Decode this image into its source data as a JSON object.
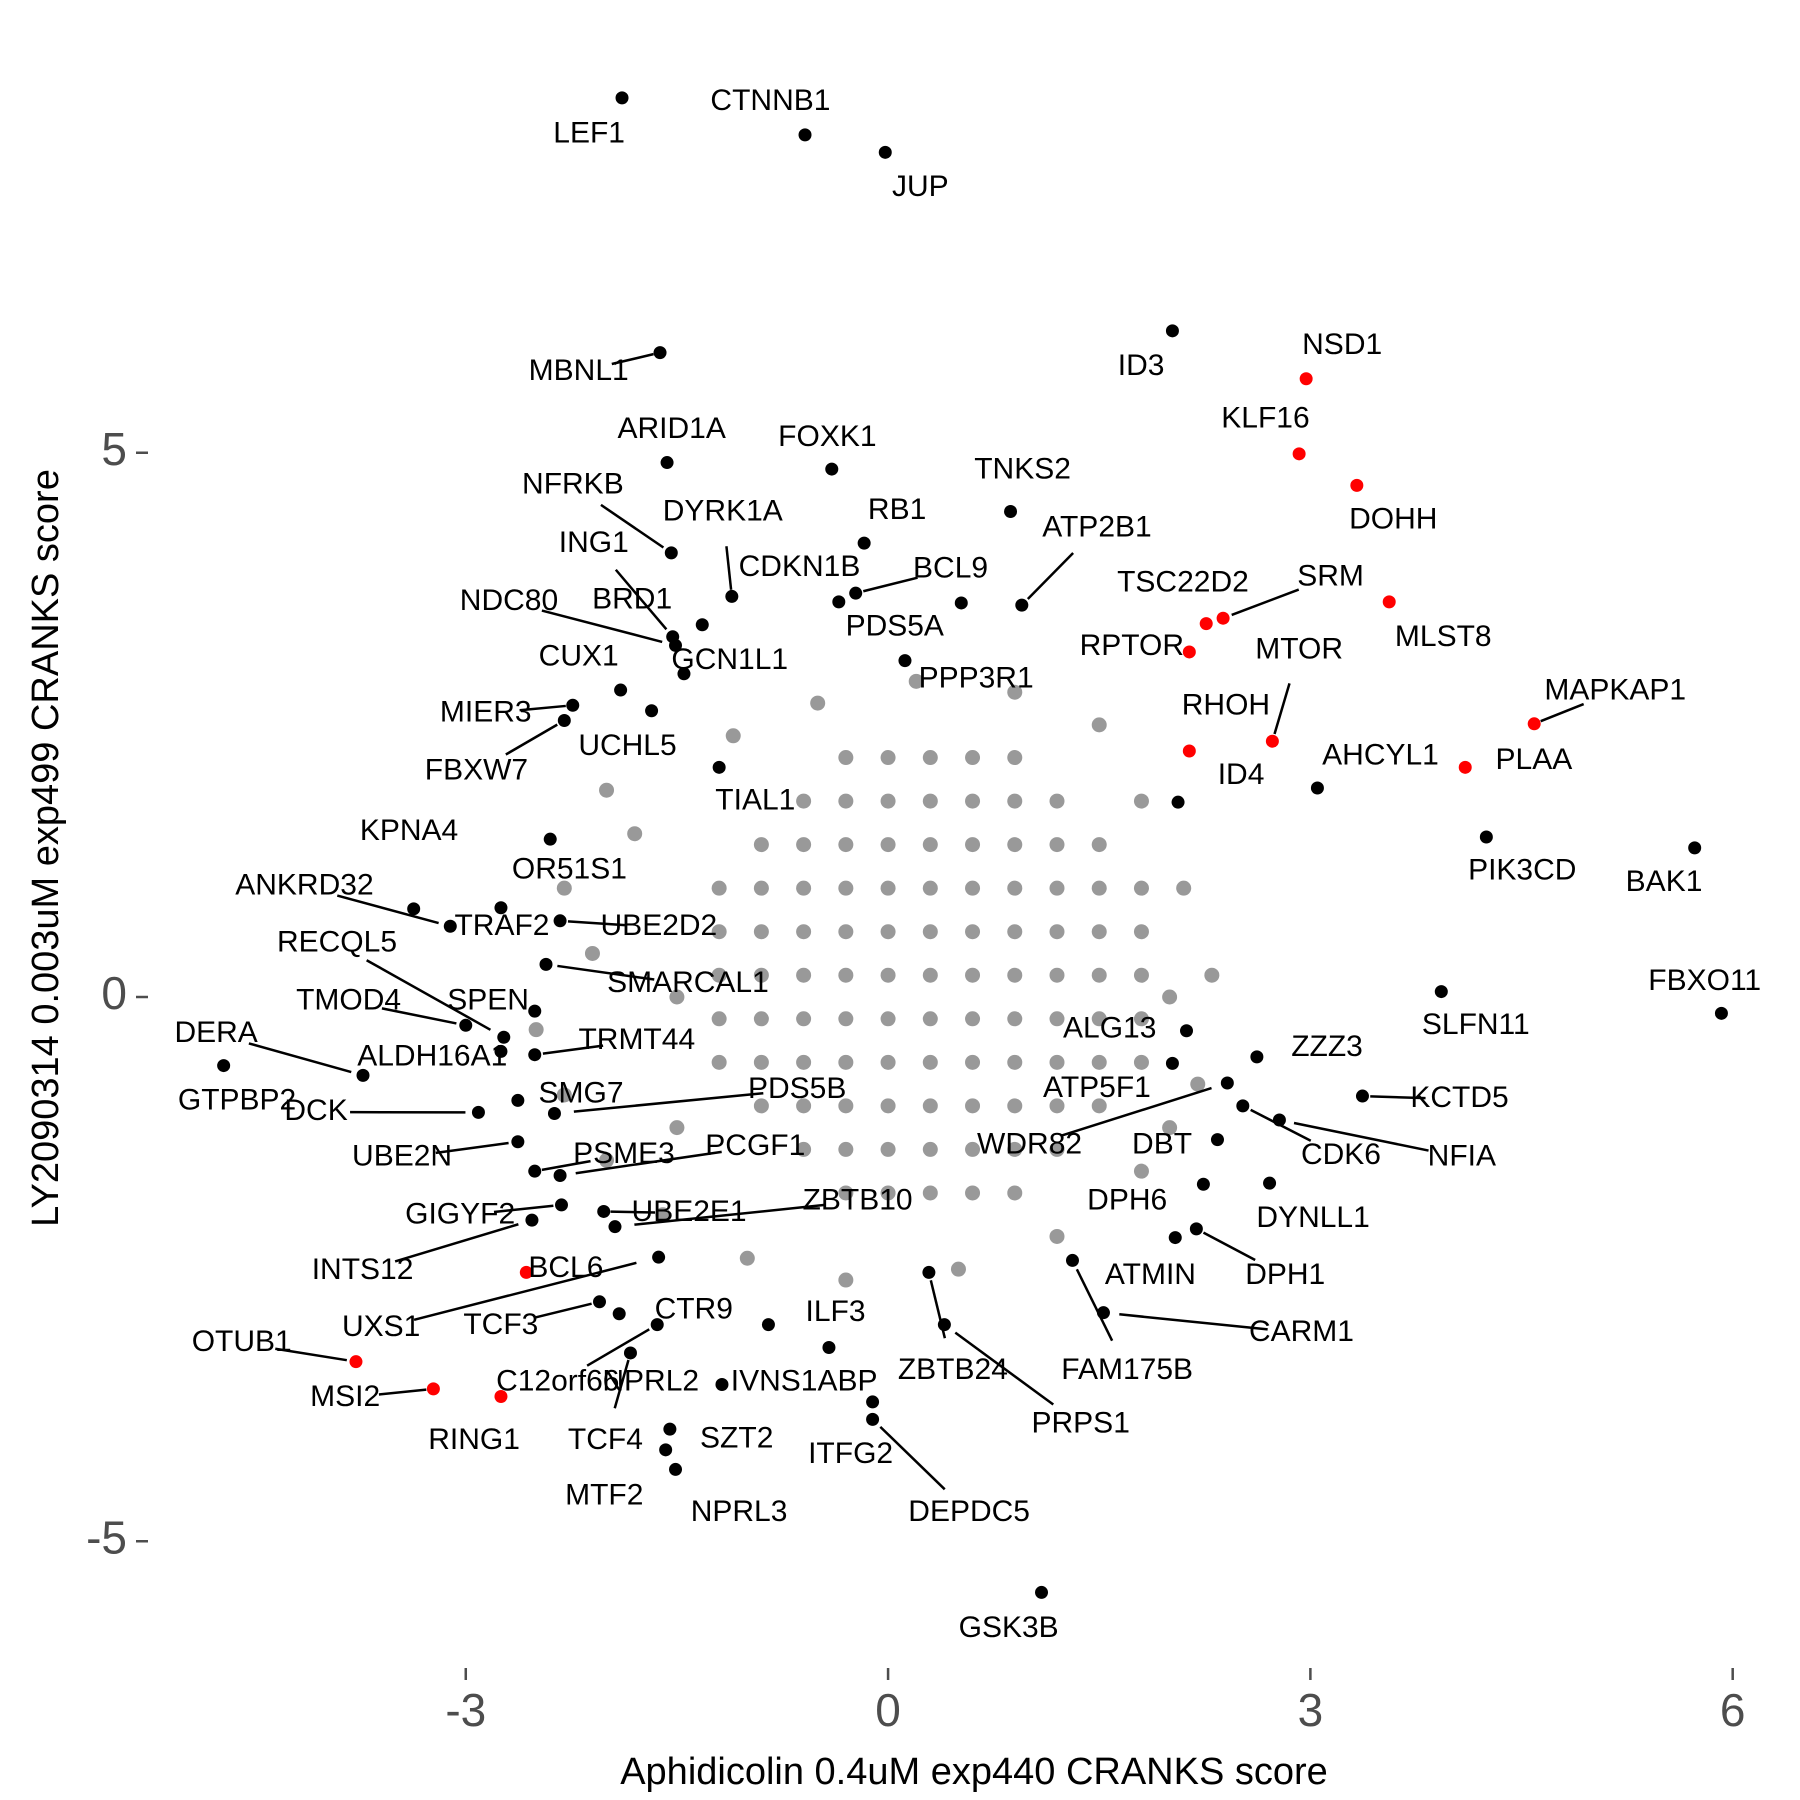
{
  "chart_data": {
    "type": "scatter",
    "xlabel": "Aphidicolin 0.4uM exp440 CRANKS score",
    "ylabel": "LY2090314 0.003uM exp499 CRANKS score",
    "xlim": [
      -5.3,
      6.4
    ],
    "ylim": [
      -6.1,
      8.7
    ],
    "xticks": [
      -3,
      0,
      3,
      6
    ],
    "yticks": [
      -5,
      0,
      5
    ],
    "grid": false,
    "series": [
      {
        "color": "#999999",
        "x": [
          -1.2,
          -1.2,
          -1.2,
          -1.2,
          -1.2,
          -0.9,
          -0.9,
          -0.9,
          -0.9,
          -0.9,
          -0.9,
          -0.9,
          -0.6,
          -0.6,
          -0.6,
          -0.6,
          -0.6,
          -0.6,
          -0.6,
          -0.6,
          -0.6,
          -0.3,
          -0.3,
          -0.3,
          -0.3,
          -0.3,
          -0.3,
          -0.3,
          -0.3,
          -0.3,
          -0.3,
          -0.3,
          0,
          0,
          0,
          0,
          0,
          0,
          0,
          0,
          0,
          0,
          0,
          0.3,
          0.3,
          0.3,
          0.3,
          0.3,
          0.3,
          0.3,
          0.3,
          0.3,
          0.3,
          0.3,
          0.6,
          0.6,
          0.6,
          0.6,
          0.6,
          0.6,
          0.6,
          0.6,
          0.6,
          0.6,
          0.6,
          0.9,
          0.9,
          0.9,
          0.9,
          0.9,
          0.9,
          0.9,
          0.9,
          0.9,
          0.9,
          0.9,
          1.2,
          1.2,
          1.2,
          1.2,
          1.2,
          1.2,
          1.2,
          1.2,
          1.2,
          1.5,
          1.5,
          1.5,
          1.5,
          1.5,
          1.5,
          1.5,
          1.8,
          1.8,
          1.8,
          1.8,
          1.8,
          -2.0,
          -1.8,
          -2.3,
          -2.1,
          -2.5,
          -2.3,
          -2.0,
          -1.6,
          -1.0,
          -0.3,
          0.5,
          1.2,
          1.8,
          2.2,
          2.3,
          2.1,
          1.8,
          1.5,
          0.9,
          0.2,
          -0.5,
          -1.1,
          -1.5,
          -1.5,
          2.0,
          2.0
        ],
        "y": [
          -0.6,
          -0.2,
          0.2,
          0.6,
          1.0,
          -1.0,
          -0.6,
          -0.2,
          0.2,
          0.6,
          1.0,
          1.4,
          -1.4,
          -1.0,
          -0.6,
          -0.2,
          0.2,
          0.6,
          1.0,
          1.4,
          1.8,
          -1.8,
          -1.4,
          -1.0,
          -0.6,
          -0.2,
          0.2,
          0.6,
          1.0,
          1.4,
          1.8,
          2.2,
          -1.8,
          -1.4,
          -1.0,
          -0.6,
          -0.2,
          0.2,
          0.6,
          1.0,
          1.4,
          1.8,
          2.2,
          -1.8,
          -1.4,
          -1.0,
          -0.6,
          -0.2,
          0.2,
          0.6,
          1.0,
          1.4,
          1.8,
          2.2,
          -1.8,
          -1.4,
          -1.0,
          -0.6,
          -0.2,
          0.2,
          0.6,
          1.0,
          1.4,
          1.8,
          2.2,
          -1.8,
          -1.4,
          -1.0,
          -0.6,
          -0.2,
          0.2,
          0.6,
          1.0,
          1.4,
          1.8,
          2.2,
          -1.4,
          -1.0,
          -0.6,
          -0.2,
          0.2,
          0.6,
          1.0,
          1.4,
          1.8,
          -1.0,
          -0.6,
          -0.2,
          0.2,
          0.6,
          1.0,
          1.4,
          -0.6,
          -0.2,
          0.2,
          0.6,
          1.0,
          1.9,
          1.5,
          1.0,
          0.4,
          -0.3,
          -0.9,
          -1.5,
          -2.0,
          -2.4,
          -2.6,
          -2.5,
          -2.2,
          -1.6,
          -0.8,
          0.2,
          1.0,
          1.8,
          2.5,
          2.8,
          2.9,
          2.7,
          2.4,
          -1.2,
          0.0,
          -1.2,
          0.0
        ]
      },
      {
        "color": "#000000",
        "labels": [
          "LEF1",
          "CTNNB1",
          "JUP",
          "MBNL1",
          "ID3",
          "ARID1A",
          "FOXK1",
          "NFRKB",
          "DYRK1A",
          "RB1",
          "TNKS2",
          "ATP2B1",
          "ING1",
          "CDKN1B",
          "BCL9",
          "NDC80",
          "BRD1",
          "PDS5A",
          "GCN1L1",
          "CUX1",
          "PPP3R1",
          "MIER3",
          "UCHL5",
          "FBXW7",
          "TIAL1",
          "KPNA4",
          "ANKRD32",
          "TRAF2",
          "OR51S1",
          "UBE2D2",
          "SMARCAL1",
          "RECQL5",
          "TMOD4",
          "SPEN",
          "TRMT44",
          "DERA",
          "GTPBP2",
          "ALDH16A1",
          "DCK",
          "SMG7",
          "PDS5B",
          "UBE2N",
          "PSME3",
          "PCGF1",
          "GIGYF2",
          "INTS12",
          "UBE2E1",
          "ZBTB10",
          "UXS1",
          "TCF3",
          "CTR9",
          "ILF3",
          "C12orf66",
          "NPRL2",
          "IVNS1ABP",
          "TCF4",
          "SZT2",
          "MTF2",
          "NPRL3",
          "ITFG2",
          "DEPDC5",
          "ZBTB24",
          "PRPS1",
          "GSK3B",
          "FAM175B",
          "CARM1",
          "ATMIN",
          "DPH1",
          "DPH6",
          "DYNLL1",
          "DBT",
          "CDK6",
          "NFIA",
          "KCTD5",
          "ZZZ3",
          "WDR82",
          "ATP5F1",
          "ALG13",
          "SLFN11",
          "FBXO11",
          "BAK1",
          "PIK3CD",
          "AHCYL1",
          "ID4"
        ],
        "x": [
          -1.89,
          -0.59,
          -0.02,
          -1.62,
          2.02,
          -1.57,
          -0.4,
          -1.54,
          -1.11,
          -0.17,
          0.87,
          0.95,
          -1.53,
          -0.35,
          -0.23,
          -1.51,
          -1.32,
          0.52,
          -1.45,
          -1.9,
          0.12,
          -2.24,
          -1.68,
          -2.3,
          -1.2,
          -3.37,
          -3.11,
          -2.75,
          -2.4,
          -2.33,
          -2.43,
          -2.73,
          -3.0,
          -2.51,
          -2.51,
          -3.73,
          -4.72,
          -2.75,
          -2.91,
          -2.63,
          -2.37,
          -2.63,
          -2.51,
          -2.33,
          -2.32,
          -2.53,
          -2.02,
          -1.94,
          -1.63,
          -2.05,
          -1.91,
          -0.85,
          -1.64,
          -1.18,
          -0.42,
          -1.83,
          -1.55,
          -1.58,
          -1.51,
          -0.11,
          -0.11,
          0.29,
          0.4,
          1.09,
          1.31,
          1.53,
          2.04,
          2.19,
          2.24,
          2.71,
          2.34,
          2.52,
          2.78,
          3.37,
          2.62,
          2.41,
          2.02,
          2.12,
          3.93,
          5.92,
          5.73,
          4.25,
          3.05,
          2.06
        ],
        "y": [
          8.26,
          7.92,
          7.76,
          5.92,
          6.12,
          4.91,
          4.85,
          4.08,
          3.68,
          4.17,
          4.46,
          3.6,
          3.31,
          3.63,
          3.71,
          3.23,
          3.42,
          3.62,
          2.97,
          2.82,
          3.09,
          2.68,
          2.63,
          2.54,
          2.11,
          0.81,
          0.65,
          0.82,
          1.45,
          0.7,
          0.3,
          -0.37,
          -0.26,
          -0.13,
          -0.53,
          -0.72,
          -0.63,
          -0.5,
          -1.06,
          -0.95,
          -1.07,
          -1.33,
          -1.6,
          -1.64,
          -1.91,
          -2.05,
          -1.97,
          -2.11,
          -2.39,
          -2.8,
          -2.91,
          -3.01,
          -3.01,
          -3.56,
          -3.22,
          -3.27,
          -3.97,
          -4.16,
          -4.34,
          -3.72,
          -3.88,
          -2.53,
          -3.01,
          -5.47,
          -2.42,
          -2.9,
          -2.21,
          -2.13,
          -1.72,
          -1.71,
          -1.31,
          -1.0,
          -1.13,
          -0.91,
          -0.55,
          -0.79,
          -0.61,
          -0.31,
          0.05,
          -0.15,
          1.37,
          1.47,
          1.92,
          1.79
        ]
      },
      {
        "color": "#ff0000",
        "labels": [
          "RPTOR",
          "TSC22D2",
          "SRM",
          "MTOR",
          "RHOH",
          "NSD1",
          "KLF16",
          "DOHH",
          "MLST8",
          "MAPKAP1",
          "PLAA",
          "BCL6",
          "OTUB1",
          "MSI2",
          "RING1"
        ],
        "x": [
          2.14,
          2.26,
          2.38,
          2.73,
          2.14,
          2.97,
          2.92,
          3.33,
          3.56,
          4.59,
          4.1,
          -2.57,
          -3.78,
          -3.23,
          -2.75
        ],
        "y": [
          3.17,
          3.43,
          3.48,
          2.35,
          2.26,
          5.68,
          4.99,
          4.7,
          3.63,
          2.51,
          2.11,
          -2.53,
          -3.35,
          -3.6,
          -3.67
        ]
      }
    ]
  }
}
